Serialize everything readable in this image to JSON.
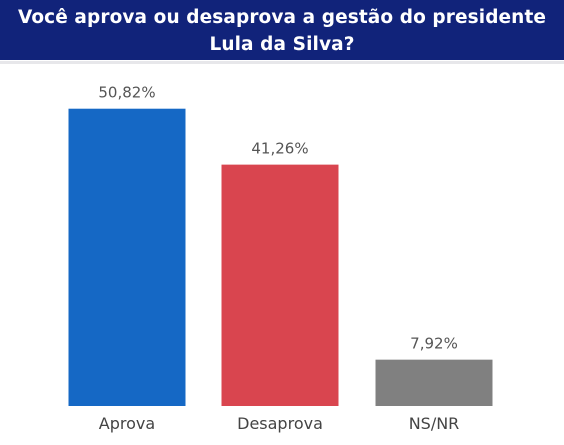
{
  "header": {
    "title_line1": "Você aprova ou desaprova a gestão do presidente",
    "title_line2": "Lula da Silva?"
  },
  "colors": {
    "header_bg": "#11237a",
    "aprova": "#1568c5",
    "desaprova": "#d9454f",
    "nsnr": "#808080"
  },
  "chart_data": {
    "type": "bar",
    "title": "Você aprova ou desaprova a gestão do presidente Lula da Silva?",
    "categories": [
      "Aprova",
      "Desaprova",
      "NS/NR"
    ],
    "values": [
      50.82,
      41.26,
      7.92
    ],
    "value_labels": [
      "50,82%",
      "41,26%",
      "7,92%"
    ],
    "bar_colors": [
      "#1568c5",
      "#d9454f",
      "#808080"
    ],
    "xlabel": "",
    "ylabel": "",
    "ylim": [
      0,
      55
    ],
    "grid": false,
    "legend": "none"
  }
}
